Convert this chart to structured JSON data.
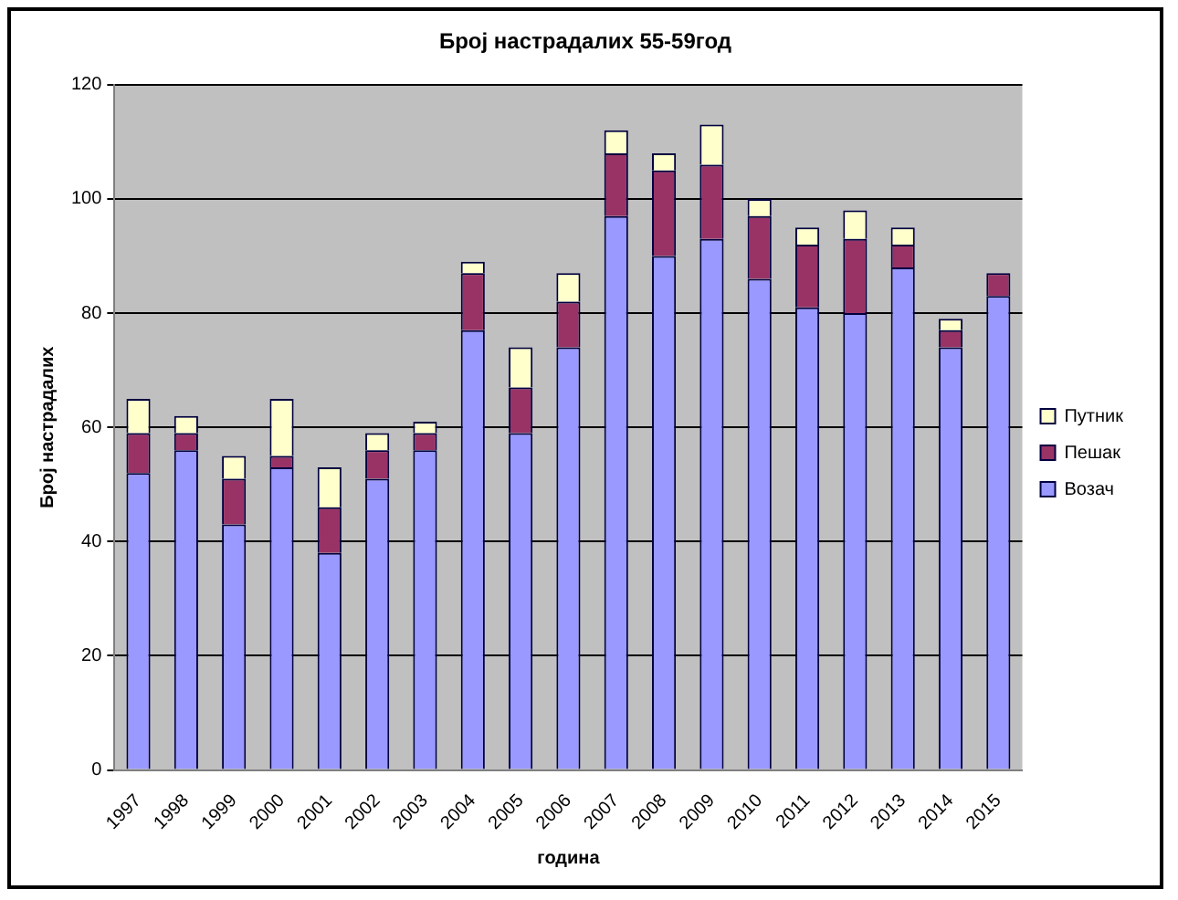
{
  "chart_data": {
    "type": "bar",
    "title": "Број настрадалих 55-59год",
    "xlabel": "година",
    "ylabel": "Број настрадалих",
    "categories": [
      "1997",
      "1998",
      "1999",
      "2000",
      "2001",
      "2002",
      "2003",
      "2004",
      "2005",
      "2006",
      "2007",
      "2008",
      "2009",
      "2010",
      "2011",
      "2012",
      "2013",
      "2014",
      "2015"
    ],
    "stacked": true,
    "series": [
      {
        "name": "Возач",
        "color": "#9999ff",
        "values": [
          52,
          56,
          43,
          53,
          38,
          51,
          56,
          77,
          59,
          74,
          97,
          90,
          93,
          86,
          81,
          80,
          88,
          74,
          83
        ]
      },
      {
        "name": "Пешак",
        "color": "#993366",
        "values": [
          7,
          3,
          8,
          2,
          8,
          5,
          3,
          10,
          8,
          8,
          11,
          15,
          13,
          11,
          11,
          13,
          4,
          3,
          4
        ]
      },
      {
        "name": "Путник",
        "color": "#ffffcc",
        "values": [
          6,
          3,
          4,
          10,
          7,
          3,
          2,
          2,
          7,
          5,
          4,
          3,
          7,
          3,
          3,
          5,
          3,
          2,
          0
        ]
      }
    ],
    "ylim": [
      0,
      120
    ],
    "yticks": [
      0,
      20,
      40,
      60,
      80,
      100,
      120
    ],
    "grid": "y",
    "legend": "right"
  }
}
